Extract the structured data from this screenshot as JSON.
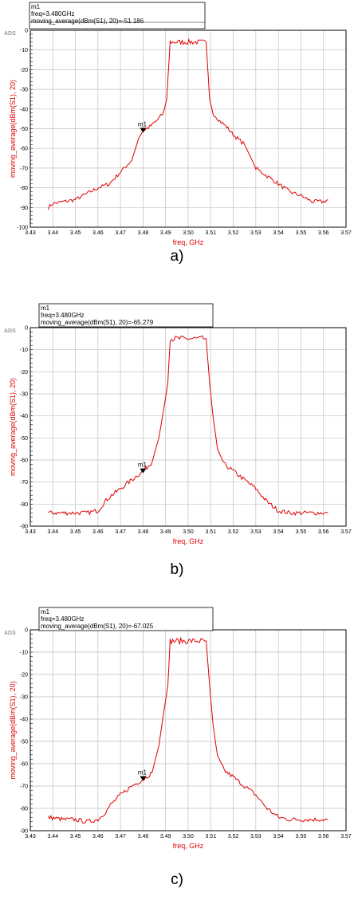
{
  "software_tag": "ADS",
  "chart_data": [
    {
      "type": "line",
      "caption": "a)",
      "xlabel": "freq, GHz",
      "ylabel": "moving_average(dBm(S1), 20)",
      "xlim": [
        3.43,
        3.57
      ],
      "ylim": [
        -100,
        0
      ],
      "grid": true,
      "x_tick_labels": [
        "3.43",
        "3.44",
        "3.45",
        "3.46",
        "3.47",
        "3.48",
        "3.49",
        "3.50",
        "3.51",
        "3.52",
        "3.53",
        "3.54",
        "3.55",
        "3.56",
        "3.57"
      ],
      "y_tick_labels": [
        "0",
        "-10",
        "-20",
        "-30",
        "-40",
        "-50",
        "-60",
        "-70",
        "-80",
        "-90",
        "-100"
      ],
      "marker": {
        "label": "m1",
        "x": 3.48,
        "y": -51.186,
        "lines": [
          "m1",
          "freq=3.480GHz",
          "moving_average(dBm(S1), 20)=-51.186"
        ]
      },
      "series": [
        {
          "x": [
            3.438,
            3.44,
            3.445,
            3.45,
            3.455,
            3.46,
            3.465,
            3.47,
            3.475,
            3.478,
            3.48,
            3.483,
            3.486,
            3.489,
            3.4905,
            3.492,
            3.508,
            3.5095,
            3.511,
            3.514,
            3.517,
            3.52,
            3.525,
            3.53,
            3.535,
            3.54,
            3.545,
            3.55,
            3.555,
            3.56,
            3.562
          ],
          "y": [
            -90,
            -88,
            -87,
            -86,
            -83,
            -80,
            -78,
            -72,
            -66,
            -55,
            -51,
            -49,
            -46,
            -42,
            -35,
            -6,
            -6,
            -35,
            -42,
            -46,
            -49,
            -53,
            -58,
            -70,
            -74,
            -78,
            -82,
            -84,
            -87,
            -87,
            -86
          ]
        }
      ]
    },
    {
      "type": "line",
      "caption": "b)",
      "xlabel": "freq, GHz",
      "ylabel": "moving_average(dBm(S1), 20)",
      "xlim": [
        3.43,
        3.57
      ],
      "ylim": [
        -90,
        0
      ],
      "grid": true,
      "x_tick_labels": [
        "3.43",
        "3.44",
        "3.45",
        "3.46",
        "3.47",
        "3.48",
        "3.49",
        "3.50",
        "3.51",
        "3.52",
        "3.53",
        "3.54",
        "3.55",
        "3.56",
        "3.57"
      ],
      "y_tick_labels": [
        "0",
        "-10",
        "-20",
        "-30",
        "-40",
        "-50",
        "-60",
        "-70",
        "-80",
        "-90"
      ],
      "marker": {
        "label": "m1",
        "x": 3.48,
        "y": -65.279,
        "lines": [
          "m1",
          "freq=3.480GHz",
          "moving_average(dBm(S1), 20)=-65.279"
        ]
      },
      "series": [
        {
          "x": [
            3.438,
            3.445,
            3.45,
            3.455,
            3.46,
            3.463,
            3.466,
            3.47,
            3.475,
            3.48,
            3.484,
            3.487,
            3.489,
            3.491,
            3.492,
            3.508,
            3.5095,
            3.511,
            3.513,
            3.516,
            3.52,
            3.525,
            3.53,
            3.535,
            3.54,
            3.545,
            3.55,
            3.555,
            3.56,
            3.562
          ],
          "y": [
            -84,
            -84,
            -84,
            -84,
            -83,
            -79,
            -76,
            -73,
            -69,
            -65,
            -61,
            -50,
            -38,
            -25,
            -5,
            -5,
            -25,
            -40,
            -55,
            -62,
            -65,
            -69,
            -73,
            -79,
            -83,
            -84,
            -84,
            -84,
            -84,
            -84
          ]
        }
      ]
    },
    {
      "type": "line",
      "caption": "c)",
      "xlabel": "freq, GHz",
      "ylabel": "moving_average(dBm(S1), 20)",
      "xlim": [
        3.43,
        3.57
      ],
      "ylim": [
        -90,
        0
      ],
      "grid": true,
      "x_tick_labels": [
        "3.43",
        "3.44",
        "3.45",
        "3.46",
        "3.47",
        "3.48",
        "3.49",
        "3.50",
        "3.51",
        "3.52",
        "3.53",
        "3.54",
        "3.55",
        "3.56",
        "3.57"
      ],
      "y_tick_labels": [
        "0",
        "-10",
        "-20",
        "-30",
        "-40",
        "-50",
        "-60",
        "-70",
        "-80",
        "-90"
      ],
      "marker": {
        "label": "m1",
        "x": 3.48,
        "y": -67.025,
        "lines": [
          "m1",
          "freq=3.480GHz",
          "moving_average(dBm(S1), 20)=-67.025"
        ]
      },
      "series": [
        {
          "x": [
            3.438,
            3.445,
            3.45,
            3.455,
            3.46,
            3.463,
            3.466,
            3.47,
            3.475,
            3.48,
            3.484,
            3.487,
            3.489,
            3.491,
            3.492,
            3.508,
            3.5095,
            3.511,
            3.513,
            3.516,
            3.52,
            3.525,
            3.53,
            3.535,
            3.54,
            3.545,
            3.55,
            3.555,
            3.56,
            3.562
          ],
          "y": [
            -84,
            -85,
            -85,
            -86,
            -85,
            -82,
            -78,
            -74,
            -70,
            -67,
            -64,
            -52,
            -38,
            -25,
            -5,
            -5,
            -25,
            -42,
            -57,
            -63,
            -66,
            -70,
            -74,
            -80,
            -84,
            -85,
            -85,
            -85,
            -85,
            -85
          ]
        }
      ]
    }
  ],
  "colors": {
    "curve": "#e00000",
    "axis_text": "#e00000",
    "grid": "#bfbfbf",
    "frame": "#000000",
    "tag": "#9a9a9a"
  }
}
